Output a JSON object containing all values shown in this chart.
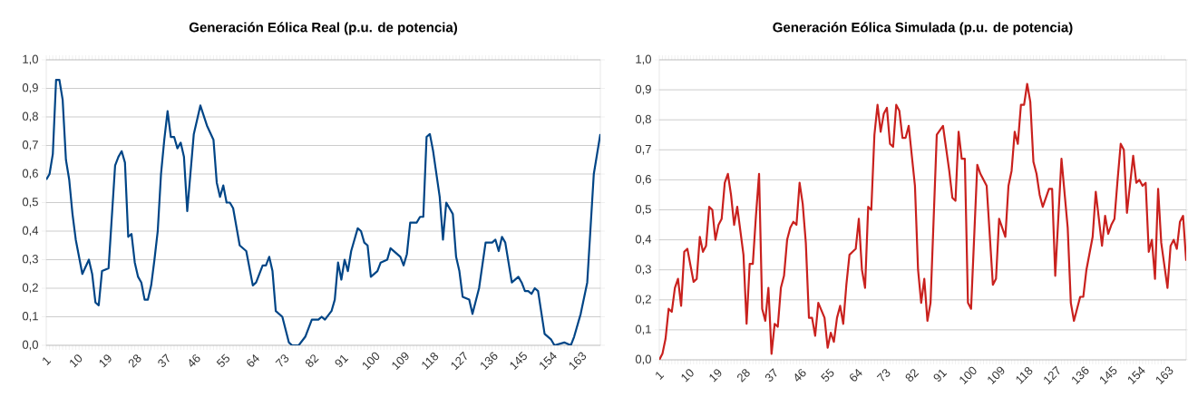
{
  "chart_data": [
    {
      "type": "line",
      "title": "Generación Eólica Real (p.u. de potencia)",
      "color": "#004586",
      "grid": "y",
      "xlim": [
        1,
        170
      ],
      "ylim": [
        0,
        1
      ],
      "xticks": [
        1,
        10,
        19,
        28,
        37,
        46,
        55,
        64,
        73,
        82,
        91,
        100,
        109,
        118,
        127,
        136,
        145,
        154,
        163
      ],
      "yticks": [
        {
          "value": 0,
          "label": "0,0"
        },
        {
          "value": 0.1,
          "label": "0,1"
        },
        {
          "value": 0.2,
          "label": "0,2"
        },
        {
          "value": 0.3,
          "label": "0,3"
        },
        {
          "value": 0.4,
          "label": "0,4"
        },
        {
          "value": 0.5,
          "label": "0,5"
        },
        {
          "value": 0.6,
          "label": "0,6"
        },
        {
          "value": 0.7,
          "label": "0,7"
        },
        {
          "value": 0.8,
          "label": "0,8"
        },
        {
          "value": 0.9,
          "label": "0,9"
        },
        {
          "value": 1,
          "label": "1,0"
        }
      ],
      "x": [
        1,
        2,
        3,
        4,
        5,
        6,
        7,
        8,
        9,
        10,
        12,
        14,
        15,
        16,
        17,
        18,
        20,
        22,
        23,
        24,
        25,
        26,
        27,
        28,
        29,
        30,
        31,
        32,
        33,
        34,
        35,
        36,
        37,
        38,
        39,
        40,
        41,
        42,
        43,
        44,
        46,
        48,
        50,
        52,
        53,
        54,
        55,
        56,
        57,
        58,
        60,
        62,
        64,
        65,
        67,
        68,
        69,
        70,
        71,
        73,
        75,
        76,
        78,
        80,
        82,
        84,
        85,
        86,
        88,
        89,
        90,
        91,
        92,
        93,
        94,
        96,
        97,
        98,
        99,
        100,
        102,
        103,
        105,
        106,
        109,
        110,
        111,
        112,
        114,
        115,
        116,
        117,
        118,
        119,
        121,
        122,
        123,
        125,
        126,
        127,
        128,
        130,
        131,
        133,
        135,
        137,
        138,
        139,
        140,
        141,
        143,
        145,
        146,
        147,
        148,
        149,
        150,
        151,
        153,
        155,
        156,
        159,
        161,
        162,
        164,
        166,
        168,
        170
      ],
      "values": [
        0.58,
        0.6,
        0.67,
        0.93,
        0.93,
        0.86,
        0.65,
        0.58,
        0.46,
        0.37,
        0.25,
        0.3,
        0.25,
        0.15,
        0.14,
        0.26,
        0.27,
        0.63,
        0.66,
        0.68,
        0.64,
        0.38,
        0.39,
        0.29,
        0.24,
        0.22,
        0.16,
        0.16,
        0.21,
        0.3,
        0.4,
        0.6,
        0.72,
        0.82,
        0.73,
        0.73,
        0.69,
        0.71,
        0.66,
        0.47,
        0.74,
        0.84,
        0.77,
        0.72,
        0.57,
        0.52,
        0.56,
        0.5,
        0.5,
        0.48,
        0.35,
        0.33,
        0.21,
        0.22,
        0.28,
        0.28,
        0.31,
        0.26,
        0.12,
        0.1,
        0.01,
        0,
        0,
        0.03,
        0.09,
        0.09,
        0.1,
        0.09,
        0.12,
        0.16,
        0.29,
        0.23,
        0.3,
        0.26,
        0.33,
        0.41,
        0.4,
        0.36,
        0.35,
        0.24,
        0.26,
        0.29,
        0.3,
        0.34,
        0.31,
        0.28,
        0.32,
        0.43,
        0.43,
        0.45,
        0.45,
        0.73,
        0.74,
        0.68,
        0.52,
        0.37,
        0.5,
        0.46,
        0.31,
        0.26,
        0.17,
        0.16,
        0.11,
        0.2,
        0.36,
        0.36,
        0.37,
        0.33,
        0.38,
        0.36,
        0.22,
        0.24,
        0.22,
        0.19,
        0.19,
        0.18,
        0.2,
        0.19,
        0.04,
        0.02,
        0,
        0.01,
        0,
        0.03,
        0.11,
        0.22,
        0.6,
        0.74
      ]
    },
    {
      "type": "line",
      "title": "Generación Eólica Simulada (p.u. de potencia)",
      "color": "#c9211e",
      "grid": "y",
      "xlim": [
        1,
        170
      ],
      "ylim": [
        0,
        1
      ],
      "xticks": [
        1,
        10,
        19,
        28,
        37,
        46,
        55,
        64,
        73,
        82,
        91,
        100,
        109,
        118,
        127,
        136,
        145,
        154,
        163
      ],
      "yticks": [
        {
          "value": 0,
          "label": "0,0"
        },
        {
          "value": 0.1,
          "label": "0,1"
        },
        {
          "value": 0.2,
          "label": "0,2"
        },
        {
          "value": 0.3,
          "label": "0,3"
        },
        {
          "value": 0.4,
          "label": "0,4"
        },
        {
          "value": 0.5,
          "label": "0,5"
        },
        {
          "value": 0.6,
          "label": "0,6"
        },
        {
          "value": 0.7,
          "label": "0,7"
        },
        {
          "value": 0.8,
          "label": "0,8"
        },
        {
          "value": 0.9,
          "label": "0,9"
        },
        {
          "value": 1,
          "label": "1,0"
        }
      ],
      "x": [
        1,
        2,
        3,
        4,
        5,
        6,
        7,
        8,
        9,
        10,
        12,
        13,
        14,
        15,
        16,
        17,
        18,
        19,
        20,
        21,
        22,
        23,
        24,
        25,
        26,
        28,
        29,
        30,
        31,
        32,
        33,
        34,
        35,
        36,
        37,
        38,
        39,
        40,
        41,
        42,
        43,
        44,
        45,
        46,
        47,
        48,
        49,
        50,
        51,
        52,
        54,
        55,
        56,
        57,
        58,
        59,
        60,
        61,
        62,
        63,
        64,
        65,
        66,
        67,
        68,
        69,
        70,
        71,
        72,
        73,
        74,
        75,
        76,
        77,
        78,
        79,
        80,
        81,
        83,
        84,
        85,
        86,
        87,
        88,
        90,
        92,
        94,
        95,
        96,
        97,
        98,
        99,
        100,
        101,
        103,
        104,
        106,
        108,
        109,
        110,
        112,
        113,
        114,
        115,
        116,
        117,
        118,
        119,
        120,
        121,
        122,
        123,
        124,
        125,
        126,
        127,
        128,
        130,
        132,
        133,
        134,
        136,
        137,
        138,
        140,
        141,
        143,
        144,
        145,
        146,
        147,
        148,
        149,
        150,
        151,
        153,
        154,
        155,
        156,
        157,
        158,
        159,
        160,
        161,
        162,
        164,
        165,
        166,
        167,
        168,
        169,
        170
      ],
      "values": [
        0,
        0.02,
        0.07,
        0.17,
        0.16,
        0.24,
        0.27,
        0.18,
        0.36,
        0.37,
        0.26,
        0.27,
        0.41,
        0.36,
        0.38,
        0.51,
        0.5,
        0.4,
        0.45,
        0.47,
        0.59,
        0.62,
        0.55,
        0.45,
        0.51,
        0.35,
        0.12,
        0.32,
        0.32,
        0.48,
        0.62,
        0.17,
        0.13,
        0.24,
        0.02,
        0.12,
        0.11,
        0.24,
        0.28,
        0.4,
        0.44,
        0.46,
        0.45,
        0.59,
        0.52,
        0.39,
        0.14,
        0.14,
        0.08,
        0.19,
        0.14,
        0.04,
        0.09,
        0.06,
        0.14,
        0.18,
        0.12,
        0.25,
        0.35,
        0.36,
        0.37,
        0.47,
        0.3,
        0.24,
        0.51,
        0.5,
        0.75,
        0.85,
        0.76,
        0.82,
        0.84,
        0.72,
        0.71,
        0.85,
        0.83,
        0.74,
        0.74,
        0.78,
        0.58,
        0.3,
        0.19,
        0.27,
        0.13,
        0.19,
        0.75,
        0.78,
        0.63,
        0.54,
        0.53,
        0.76,
        0.67,
        0.67,
        0.19,
        0.17,
        0.65,
        0.62,
        0.58,
        0.25,
        0.27,
        0.47,
        0.41,
        0.58,
        0.63,
        0.76,
        0.72,
        0.85,
        0.85,
        0.92,
        0.86,
        0.66,
        0.62,
        0.55,
        0.51,
        0.54,
        0.57,
        0.57,
        0.28,
        0.67,
        0.44,
        0.19,
        0.13,
        0.21,
        0.21,
        0.3,
        0.41,
        0.56,
        0.38,
        0.48,
        0.42,
        0.45,
        0.47,
        0.6,
        0.72,
        0.7,
        0.49,
        0.68,
        0.59,
        0.6,
        0.58,
        0.59,
        0.36,
        0.4,
        0.27,
        0.57,
        0.39,
        0.24,
        0.38,
        0.4,
        0.37,
        0.46,
        0.48,
        0.33
      ]
    }
  ]
}
